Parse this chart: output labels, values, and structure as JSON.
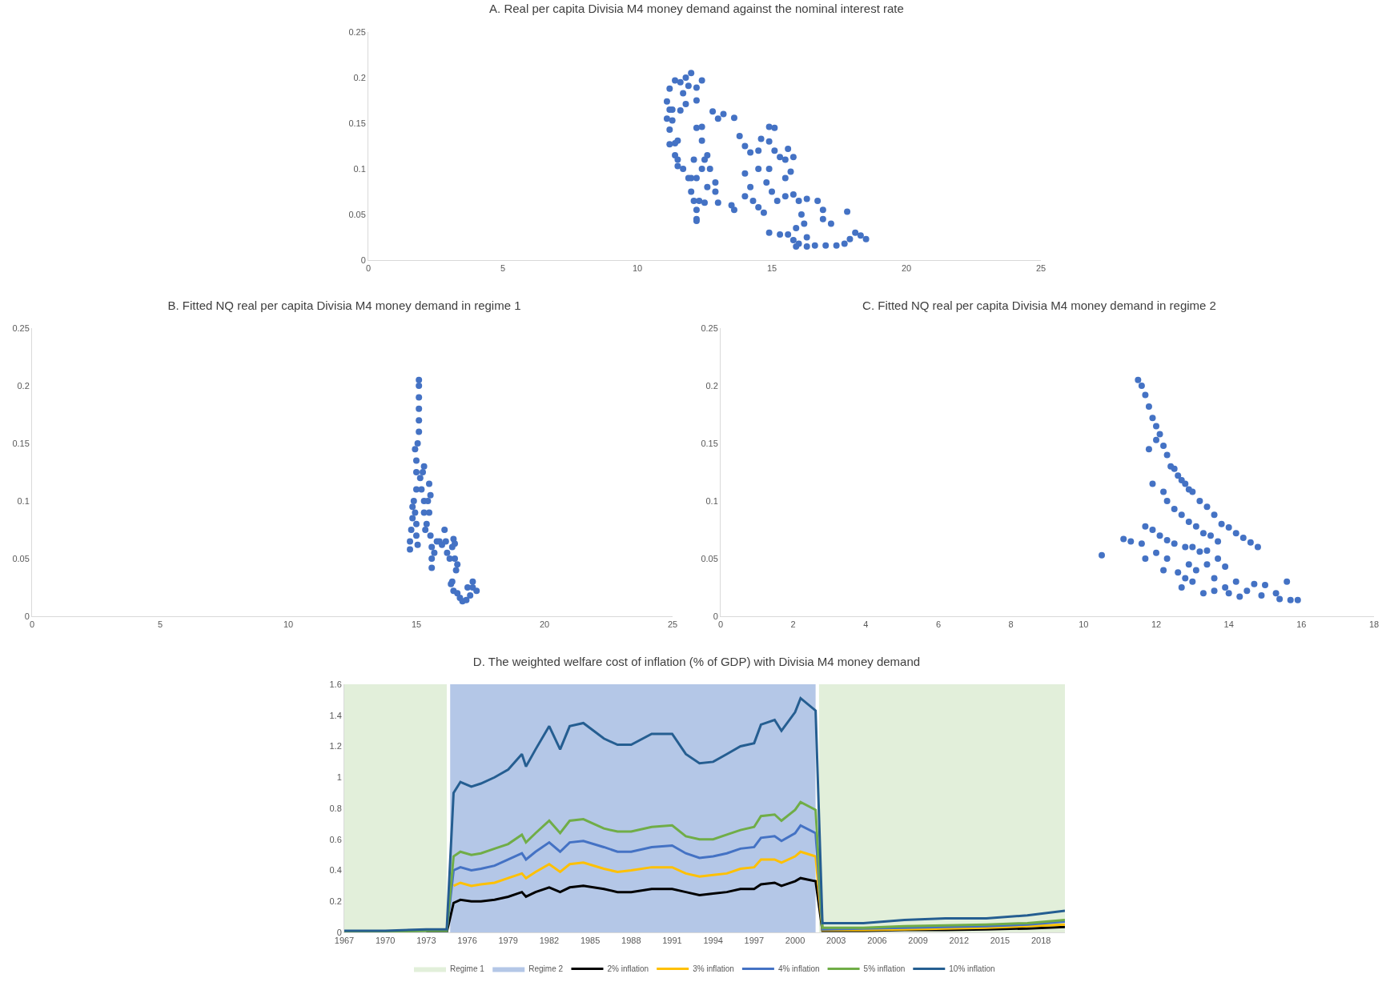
{
  "chart_data": [
    {
      "type": "scatter",
      "title": "A. Real per capita Divisia M4 money demand against the nominal interest rate",
      "color": "#4472c4",
      "marker": "circle",
      "xlim": [
        0,
        25
      ],
      "xticks": [
        0,
        5,
        10,
        15,
        20,
        25
      ],
      "ylim": [
        0,
        0.25
      ],
      "yticks": [
        0,
        0.05,
        0.1,
        0.15,
        0.2,
        0.25
      ],
      "x": [
        11.1,
        11.2,
        11.1,
        11.2,
        11.4,
        11.6,
        11.8,
        12.0,
        12.4,
        12.2,
        11.9,
        11.7,
        11.8,
        11.6,
        12.2,
        11.3,
        11.3,
        11.2,
        11.2,
        11.4,
        11.5,
        11.4,
        11.5,
        11.5,
        11.7,
        11.9,
        12.0,
        12.2,
        12.0,
        12.1,
        12.2,
        12.2,
        12.2,
        12.3,
        12.4,
        12.5,
        12.6,
        12.7,
        12.9,
        12.9,
        12.6,
        12.4,
        12.4,
        12.2,
        12.1,
        12.5,
        13.0,
        13.5,
        13.6,
        12.8,
        13.0,
        13.2,
        13.6,
        13.8,
        14.0,
        14.2,
        14.5,
        14.6,
        14.9,
        15.1,
        14.9,
        15.1,
        14.9,
        15.3,
        15.6,
        15.5,
        15.5,
        15.7,
        15.8,
        14.0,
        14.2,
        14.0,
        14.3,
        14.5,
        14.7,
        14.5,
        14.8,
        15.0,
        15.2,
        15.5,
        15.8,
        16.0,
        16.3,
        16.7,
        16.9,
        16.9,
        17.2,
        16.1,
        16.2,
        15.9,
        14.9,
        15.3,
        15.6,
        15.8,
        16.0,
        16.3,
        16.6,
        17.0,
        17.4,
        17.7,
        17.9,
        18.1,
        18.3,
        18.5,
        17.8,
        16.3,
        15.9
      ],
      "values": [
        0.155,
        0.165,
        0.174,
        0.188,
        0.197,
        0.195,
        0.2,
        0.205,
        0.197,
        0.189,
        0.191,
        0.183,
        0.171,
        0.164,
        0.175,
        0.153,
        0.165,
        0.143,
        0.127,
        0.128,
        0.131,
        0.115,
        0.11,
        0.103,
        0.1,
        0.09,
        0.09,
        0.09,
        0.075,
        0.065,
        0.055,
        0.045,
        0.043,
        0.065,
        0.1,
        0.11,
        0.115,
        0.1,
        0.085,
        0.075,
        0.08,
        0.131,
        0.146,
        0.145,
        0.11,
        0.063,
        0.063,
        0.06,
        0.055,
        0.163,
        0.155,
        0.16,
        0.156,
        0.136,
        0.125,
        0.118,
        0.12,
        0.133,
        0.146,
        0.145,
        0.13,
        0.12,
        0.1,
        0.113,
        0.122,
        0.11,
        0.09,
        0.097,
        0.113,
        0.095,
        0.08,
        0.07,
        0.065,
        0.058,
        0.052,
        0.1,
        0.085,
        0.075,
        0.065,
        0.07,
        0.072,
        0.065,
        0.067,
        0.065,
        0.055,
        0.045,
        0.04,
        0.05,
        0.04,
        0.035,
        0.03,
        0.028,
        0.028,
        0.022,
        0.018,
        0.015,
        0.016,
        0.016,
        0.016,
        0.018,
        0.023,
        0.03,
        0.027,
        0.023,
        0.053,
        0.025,
        0.015
      ]
    },
    {
      "type": "scatter",
      "title": "B. Fitted NQ real per capita Divisia M4 money demand in regime 1",
      "color": "#4472c4",
      "marker": "circle",
      "xlim": [
        0,
        25
      ],
      "xticks": [
        0,
        5,
        10,
        15,
        20,
        25
      ],
      "ylim": [
        0,
        0.25
      ],
      "yticks": [
        0,
        0.05,
        0.1,
        0.15,
        0.2,
        0.25
      ],
      "x": [
        14.75,
        14.75,
        14.8,
        14.85,
        14.85,
        14.9,
        14.95,
        15.0,
        15.0,
        15.05,
        15.0,
        15.0,
        15.0,
        14.95,
        15.05,
        15.1,
        15.1,
        15.1,
        15.1,
        15.1,
        15.1,
        15.15,
        15.2,
        15.25,
        15.3,
        15.3,
        15.3,
        15.35,
        15.4,
        15.45,
        15.5,
        15.55,
        15.5,
        15.55,
        15.6,
        15.6,
        15.6,
        15.7,
        15.8,
        15.9,
        16.0,
        16.1,
        16.15,
        16.2,
        16.3,
        16.4,
        16.45,
        16.5,
        16.5,
        16.55,
        16.4,
        16.45,
        16.6,
        16.7,
        16.8,
        16.95,
        17.1,
        17.2,
        17.2,
        17.35,
        17.0,
        16.6,
        16.35
      ],
      "values": [
        0.058,
        0.065,
        0.075,
        0.085,
        0.095,
        0.1,
        0.09,
        0.08,
        0.07,
        0.062,
        0.11,
        0.125,
        0.135,
        0.145,
        0.15,
        0.16,
        0.17,
        0.18,
        0.19,
        0.2,
        0.205,
        0.12,
        0.11,
        0.125,
        0.13,
        0.1,
        0.09,
        0.075,
        0.08,
        0.1,
        0.115,
        0.105,
        0.09,
        0.07,
        0.06,
        0.05,
        0.042,
        0.055,
        0.065,
        0.065,
        0.062,
        0.075,
        0.065,
        0.055,
        0.05,
        0.06,
        0.067,
        0.063,
        0.05,
        0.04,
        0.03,
        0.022,
        0.02,
        0.016,
        0.013,
        0.014,
        0.018,
        0.025,
        0.03,
        0.022,
        0.025,
        0.045,
        0.028
      ]
    },
    {
      "type": "scatter",
      "title": "C. Fitted NQ real per capita Divisia M4 money demand in regime 2",
      "color": "#4472c4",
      "marker": "circle",
      "xlim": [
        0,
        18
      ],
      "xticks": [
        0,
        2,
        4,
        6,
        8,
        10,
        12,
        14,
        16,
        18
      ],
      "ylim": [
        0,
        0.25
      ],
      "yticks": [
        0,
        0.05,
        0.1,
        0.15,
        0.2,
        0.25
      ],
      "x": [
        11.5,
        11.6,
        11.7,
        11.8,
        11.9,
        12.0,
        12.1,
        12.2,
        12.3,
        12.4,
        12.5,
        12.6,
        12.7,
        12.8,
        12.9,
        13.0,
        13.2,
        13.4,
        13.6,
        13.8,
        14.0,
        14.2,
        14.4,
        14.6,
        14.8,
        11.9,
        12.2,
        12.3,
        12.5,
        12.7,
        12.9,
        13.1,
        13.3,
        13.5,
        13.7,
        11.8,
        12.0,
        10.5,
        11.1,
        11.3,
        11.6,
        11.7,
        11.9,
        12.1,
        12.3,
        12.5,
        12.8,
        13.0,
        13.2,
        13.4,
        11.7,
        12.0,
        12.3,
        12.2,
        12.6,
        12.9,
        13.1,
        13.4,
        13.7,
        13.9,
        12.7,
        13.0,
        13.3,
        13.6,
        13.9,
        14.0,
        14.3,
        14.5,
        14.7,
        14.9,
        15.0,
        15.3,
        15.4,
        15.6,
        15.7,
        15.9,
        13.6,
        12.8,
        14.2
      ],
      "values": [
        0.205,
        0.2,
        0.192,
        0.182,
        0.172,
        0.165,
        0.158,
        0.148,
        0.14,
        0.13,
        0.128,
        0.122,
        0.118,
        0.115,
        0.11,
        0.108,
        0.1,
        0.095,
        0.088,
        0.08,
        0.077,
        0.072,
        0.068,
        0.064,
        0.06,
        0.115,
        0.108,
        0.1,
        0.093,
        0.088,
        0.082,
        0.078,
        0.072,
        0.07,
        0.065,
        0.145,
        0.153,
        0.053,
        0.067,
        0.065,
        0.063,
        0.078,
        0.075,
        0.07,
        0.066,
        0.063,
        0.06,
        0.06,
        0.056,
        0.057,
        0.05,
        0.055,
        0.05,
        0.04,
        0.038,
        0.045,
        0.04,
        0.045,
        0.05,
        0.043,
        0.025,
        0.03,
        0.02,
        0.022,
        0.025,
        0.02,
        0.017,
        0.022,
        0.028,
        0.018,
        0.027,
        0.02,
        0.015,
        0.03,
        0.014,
        0.014,
        0.033,
        0.033,
        0.03
      ]
    },
    {
      "type": "line",
      "title": "D. The weighted welfare cost of inflation (% of GDP) with Divisia M4 money demand",
      "legend": "bottom",
      "xlim": [
        1967,
        2019.75
      ],
      "xticks": [
        1967,
        1970,
        1973,
        1976,
        1979,
        1982,
        1985,
        1988,
        1991,
        1994,
        1997,
        2000,
        2003,
        2006,
        2009,
        2012,
        2015,
        2018
      ],
      "ylim": [
        0,
        1.6
      ],
      "yticks": [
        0,
        0.2,
        0.4,
        0.6,
        0.8,
        1,
        1.2,
        1.4,
        1.6
      ],
      "bands": [
        {
          "axis": "x",
          "from": 1967,
          "to": 1974.5,
          "label": "Regime 1",
          "color": "#e2efda"
        },
        {
          "axis": "x",
          "from": 1974.75,
          "to": 2001.5,
          "label": "Regime 2",
          "color": "#b4c7e7"
        },
        {
          "axis": "x",
          "from": 2001.75,
          "to": 2019.75,
          "color": "#e2efda"
        }
      ],
      "x": [
        1967,
        1970,
        1973,
        1974.5,
        1975,
        1975.5,
        1976.3,
        1977,
        1978,
        1979,
        1980,
        1980.3,
        1981,
        1982,
        1982.8,
        1983.5,
        1984.5,
        1986,
        1987,
        1988,
        1989.5,
        1991,
        1992,
        1993,
        1994,
        1995,
        1996,
        1997,
        1997.5,
        1998.5,
        1999,
        2000,
        2000.4,
        2001.5,
        2002,
        2005,
        2008,
        2011,
        2014,
        2017,
        2019.75
      ],
      "series": [
        {
          "name": "2% inflation",
          "color": "#000000",
          "values": [
            null,
            null,
            0,
            0,
            0.19,
            0.21,
            0.2,
            0.2,
            0.21,
            0.23,
            0.26,
            0.23,
            0.26,
            0.29,
            0.26,
            0.29,
            0.3,
            0.28,
            0.26,
            0.26,
            0.28,
            0.28,
            0.26,
            0.24,
            0.25,
            0.26,
            0.28,
            0.28,
            0.31,
            0.32,
            0.3,
            0.33,
            0.35,
            0.33,
            0.01,
            0.01,
            0.015,
            0.015,
            0.02,
            0.025,
            0.035
          ]
        },
        {
          "name": "3% inflation",
          "color": "#ffc000",
          "values": [
            null,
            null,
            null,
            null,
            0.3,
            0.32,
            0.3,
            0.31,
            0.32,
            0.35,
            0.38,
            0.35,
            0.39,
            0.44,
            0.39,
            0.44,
            0.45,
            0.41,
            0.39,
            0.4,
            0.42,
            0.42,
            0.38,
            0.36,
            0.37,
            0.38,
            0.41,
            0.42,
            0.47,
            0.47,
            0.45,
            0.49,
            0.52,
            0.49,
            0.015,
            0.015,
            0.02,
            0.025,
            0.03,
            0.04,
            0.05
          ]
        },
        {
          "name": "4% inflation",
          "color": "#4472c4",
          "values": [
            0.005,
            0.005,
            0.01,
            0.01,
            0.4,
            0.42,
            0.4,
            0.41,
            0.43,
            0.47,
            0.51,
            0.47,
            0.52,
            0.58,
            0.52,
            0.58,
            0.59,
            0.55,
            0.52,
            0.52,
            0.55,
            0.56,
            0.51,
            0.48,
            0.49,
            0.51,
            0.54,
            0.55,
            0.61,
            0.62,
            0.59,
            0.64,
            0.69,
            0.64,
            0.02,
            0.025,
            0.03,
            0.035,
            0.04,
            0.05,
            0.07
          ]
        },
        {
          "name": "5% inflation",
          "color": "#70ad47",
          "values": [
            0.005,
            0.005,
            0.01,
            0.01,
            0.49,
            0.52,
            0.5,
            0.51,
            0.54,
            0.57,
            0.63,
            0.58,
            0.64,
            0.72,
            0.64,
            0.72,
            0.73,
            0.67,
            0.65,
            0.65,
            0.68,
            0.69,
            0.62,
            0.6,
            0.6,
            0.63,
            0.66,
            0.68,
            0.75,
            0.76,
            0.72,
            0.79,
            0.84,
            0.79,
            0.03,
            0.03,
            0.04,
            0.045,
            0.05,
            0.06,
            0.08
          ]
        },
        {
          "name": "10% inflation",
          "color": "#255e91",
          "values": [
            0.01,
            0.01,
            0.02,
            0.02,
            0.9,
            0.97,
            0.94,
            0.96,
            1.0,
            1.05,
            1.15,
            1.07,
            1.18,
            1.33,
            1.18,
            1.33,
            1.35,
            1.25,
            1.21,
            1.21,
            1.28,
            1.28,
            1.15,
            1.09,
            1.1,
            1.15,
            1.2,
            1.22,
            1.34,
            1.37,
            1.3,
            1.42,
            1.51,
            1.43,
            0.06,
            0.06,
            0.08,
            0.09,
            0.09,
            0.11,
            0.14
          ]
        }
      ]
    }
  ]
}
